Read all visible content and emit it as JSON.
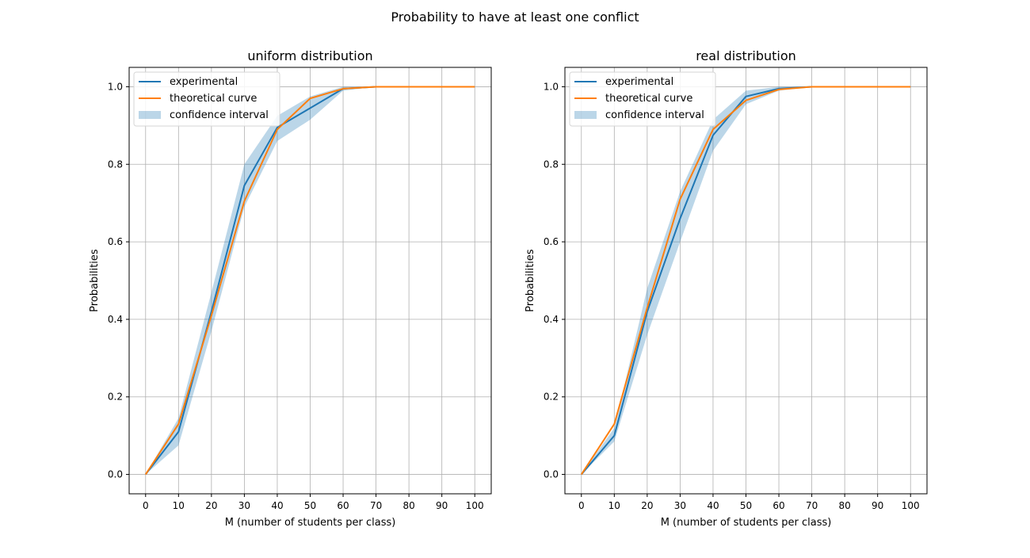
{
  "figure_title": "Probability to have at least one conflict",
  "colors": {
    "experimental": "#1f77b4",
    "theoretical": "#ff7f0e",
    "confidence_fill": "#1f77b4",
    "grid": "#b0b0b0",
    "axes": "#000000"
  },
  "chart_data": [
    {
      "type": "line",
      "title": "uniform distribution",
      "xlabel": "M (number of students per class)",
      "ylabel": "Probabilities",
      "xlim": [
        -5,
        105
      ],
      "ylim": [
        -0.05,
        1.05
      ],
      "xticks": [
        0,
        10,
        20,
        30,
        40,
        50,
        60,
        70,
        80,
        90,
        100
      ],
      "yticks": [
        "0.0",
        "0.2",
        "0.4",
        "0.6",
        "0.8",
        "1.0"
      ],
      "grid": true,
      "legend_position": "upper-left",
      "x": [
        0,
        10,
        20,
        30,
        40,
        50,
        60,
        70,
        80,
        90,
        100
      ],
      "series": [
        {
          "name": "experimental",
          "type": "line",
          "color": "#1f77b4",
          "values": [
            0.0,
            0.11,
            0.42,
            0.745,
            0.895,
            0.945,
            0.995,
            1.0,
            1.0,
            1.0,
            1.0
          ]
        },
        {
          "name": "theoretical curve",
          "type": "line",
          "color": "#ff7f0e",
          "values": [
            0.0,
            0.13,
            0.41,
            0.705,
            0.89,
            0.97,
            0.995,
            1.0,
            1.0,
            1.0,
            1.0
          ]
        }
      ],
      "confidence_interval": {
        "name": "confidence interval",
        "lower": [
          0.0,
          0.075,
          0.37,
          0.69,
          0.86,
          0.915,
          0.99,
          1.0,
          1.0,
          1.0,
          1.0
        ],
        "upper": [
          0.0,
          0.145,
          0.47,
          0.8,
          0.925,
          0.975,
          1.0,
          1.0,
          1.0,
          1.0,
          1.0
        ]
      }
    },
    {
      "type": "line",
      "title": "real distribution",
      "xlabel": "M (number of students per class)",
      "ylabel": "Probabilities",
      "xlim": [
        -5,
        105
      ],
      "ylim": [
        -0.05,
        1.05
      ],
      "xticks": [
        0,
        10,
        20,
        30,
        40,
        50,
        60,
        70,
        80,
        90,
        100
      ],
      "yticks": [
        "0.0",
        "0.2",
        "0.4",
        "0.6",
        "0.8",
        "1.0"
      ],
      "grid": true,
      "legend_position": "upper-left",
      "x": [
        0,
        10,
        20,
        30,
        40,
        50,
        60,
        70,
        80,
        90,
        100
      ],
      "series": [
        {
          "name": "experimental",
          "type": "line",
          "color": "#1f77b4",
          "values": [
            0.0,
            0.1,
            0.42,
            0.66,
            0.875,
            0.975,
            0.995,
            1.0,
            1.0,
            1.0,
            1.0
          ]
        },
        {
          "name": "theoretical curve",
          "type": "line",
          "color": "#ff7f0e",
          "values": [
            0.0,
            0.13,
            0.43,
            0.71,
            0.89,
            0.965,
            0.993,
            1.0,
            1.0,
            1.0,
            1.0
          ]
        }
      ],
      "confidence_interval": {
        "name": "confidence interval",
        "lower": [
          0.0,
          0.085,
          0.36,
          0.6,
          0.835,
          0.955,
          0.99,
          1.0,
          1.0,
          1.0,
          1.0
        ],
        "upper": [
          0.0,
          0.12,
          0.48,
          0.73,
          0.915,
          0.99,
          1.0,
          1.0,
          1.0,
          1.0,
          1.0
        ]
      }
    }
  ]
}
